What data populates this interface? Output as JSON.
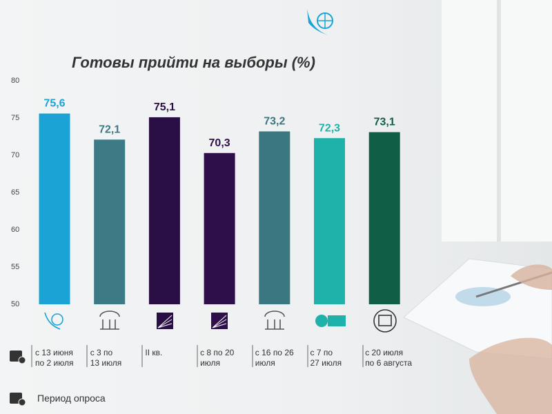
{
  "chart_data": {
    "type": "bar",
    "title": "Готовы прийти на выборы (%)",
    "categories": [
      "с 13 июня\nпо 2 июля",
      "с 3 по\n13 июля",
      "II кв.",
      "с 8 по 20\nиюля",
      "с 16 по 26\nиюля",
      "с 7 по\n27 июля",
      "с 20 июля\nпо 6 августа"
    ],
    "values": [
      75.6,
      72.1,
      75.1,
      70.3,
      73.2,
      72.3,
      73.1
    ],
    "value_labels": [
      "75,6",
      "72,1",
      "75,1",
      "70,3",
      "73,2",
      "72,3",
      "73,1"
    ],
    "colors": [
      "#1aa3d4",
      "#3c7a85",
      "#2a0f45",
      "#2f0f4a",
      "#3a7780",
      "#1fb2aa",
      "#0f5e45"
    ],
    "ylim": [
      50,
      80
    ],
    "yticks": [
      50,
      55,
      60,
      65,
      70,
      75,
      80
    ],
    "grid": false,
    "period_label": "Период опроса"
  }
}
